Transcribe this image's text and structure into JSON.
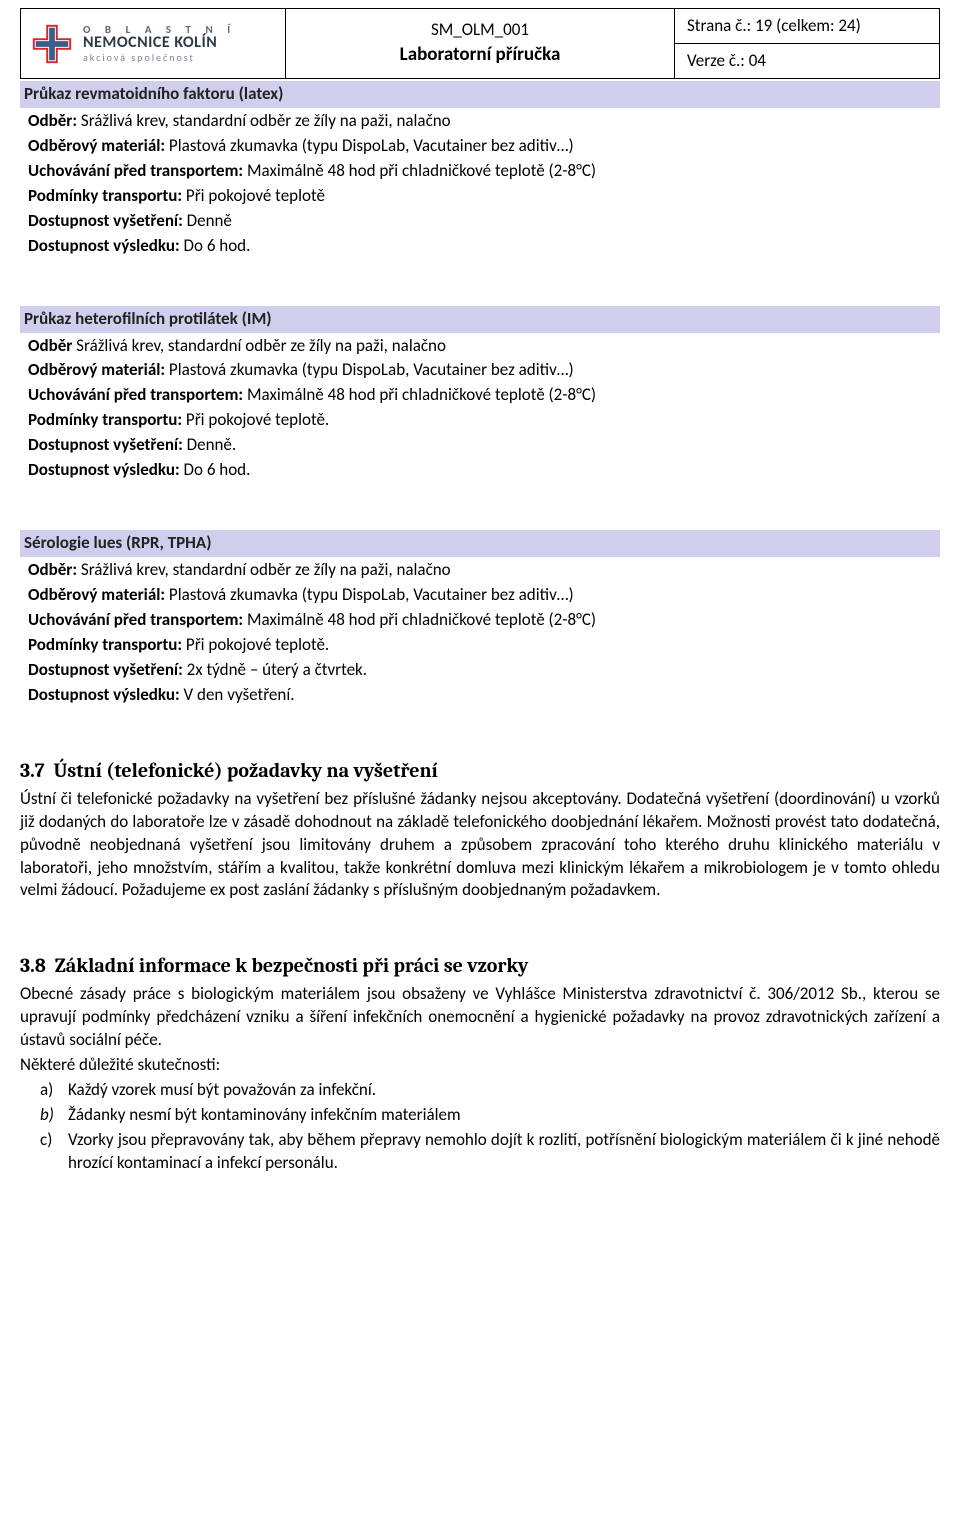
{
  "header": {
    "logo": {
      "line1": "O B L A S T N Í",
      "line2": "NEMOCNICE KOLÍN",
      "line3": "akciová společnost"
    },
    "doc_code": "SM_OLM_001",
    "doc_title": "Laboratorní příručka",
    "page_info": "Strana č.: 19 (celkem: 24)",
    "version": "Verze č.: 04"
  },
  "sections": [
    {
      "title": "Průkaz revmatoidního faktoru (latex)",
      "rows": [
        {
          "label": "Odběr:",
          "value": " Srážlivá krev, standardní odběr ze žíly na paži, nalačno"
        },
        {
          "label": "Odběrový materiál:",
          "value": " Plastová zkumavka (typu DispoLab, Vacutainer bez aditiv…)"
        },
        {
          "label": "Uchovávání před transportem:",
          "value": " Maximálně 48 hod při chladničkové teplotě (2-8°C)"
        },
        {
          "label": "Podmínky transportu:",
          "value": " Při pokojové teplotě"
        },
        {
          "label": "Dostupnost vyšetření:",
          "value": " Denně"
        },
        {
          "label": "Dostupnost výsledku:",
          "value": "  Do 6 hod."
        }
      ]
    },
    {
      "title": "Průkaz heterofilních protilátek (IM)",
      "rows": [
        {
          "label": "Odběr",
          "value": " Srážlivá krev, standardní odběr ze žíly na paži, nalačno"
        },
        {
          "label": "Odběrový materiál:",
          "value": " Plastová zkumavka (typu DispoLab, Vacutainer bez aditiv…)"
        },
        {
          "label": "Uchovávání před transportem:",
          "value": " Maximálně 48 hod při chladničkové teplotě (2-8°C)"
        },
        {
          "label": "Podmínky transportu:",
          "value": " Při pokojové teplotě."
        },
        {
          "label": "Dostupnost vyšetření:",
          "value": " Denně."
        },
        {
          "label": "Dostupnost výsledku:",
          "value": "  Do 6 hod."
        }
      ]
    },
    {
      "title": "Sérologie lues (RPR, TPHA)",
      "rows": [
        {
          "label": "Odběr:",
          "value": " Srážlivá krev, standardní odběr ze žíly na paži, nalačno"
        },
        {
          "label": "Odběrový materiál:",
          "value": " Plastová zkumavka (typu DispoLab, Vacutainer bez aditiv…)"
        },
        {
          "label": "Uchovávání před transportem:",
          "value": " Maximálně 48 hod při chladničkové teplotě (2-8°C)"
        },
        {
          "label": "Podmínky transportu:",
          "value": " Při pokojové teplotě."
        },
        {
          "label": "Dostupnost vyšetření:",
          "value": " 2x týdně – úterý a čtvrtek."
        },
        {
          "label": "Dostupnost výsledku:",
          "value": "  V den vyšetření."
        }
      ]
    }
  ],
  "chapter37": {
    "number": "3.7",
    "title": "Ústní (telefonické) požadavky na vyšetření",
    "body": "Ústní či telefonické požadavky na vyšetření bez příslušné žádanky nejsou akceptovány. Dodatečná vyšetření (doordinování) u vzorků již dodaných do laboratoře lze v zásadě dohodnout na základě telefonického doobjednání lékařem. Možnosti provést tato dodatečná, původně neobjednaná vyšetření jsou limitovány druhem a způsobem zpracování toho kterého druhu klinického materiálu v laboratoři, jeho množstvím, stářím a kvalitou, takže konkrétní domluva mezi klinickým lékařem a mikrobiologem je v tomto ohledu velmi žádoucí. Požadujeme ex post zaslání žádanky s příslušným doobjednaným požadavkem."
  },
  "chapter38": {
    "number": "3.8",
    "title": "Základní informace k bezpečnosti při práci se vzorky",
    "para1": "Obecné zásady práce s biologickým materiálem jsou obsaženy ve Vyhlášce Ministerstva zdravotnictví č. 306/2012 Sb., kterou se upravují podmínky předcházení vzniku a šíření infekčních onemocnění a hygienické požadavky na provoz zdravotnických zařízení a ústavů sociální péče.",
    "para2": "Některé důležité skutečnosti:",
    "items": [
      {
        "marker": "a)",
        "text": "Každý vzorek musí být považován za infekční."
      },
      {
        "marker": "b)",
        "text": "Žádanky nesmí být kontaminovány infekčním materiálem",
        "italic": true
      },
      {
        "marker": "c)",
        "text": "Vzorky jsou přepravovány tak, aby během přepravy nemohlo dojít k rozlití, potřísnění biologickým materiálem či k jiné nehodě hrozící kontaminací a infekcí personálu."
      }
    ]
  },
  "colors": {
    "banner_bg": "#cfcfed",
    "text": "#000000",
    "logo_accent": "#d9242a",
    "logo_blue": "#3a5f8a"
  }
}
